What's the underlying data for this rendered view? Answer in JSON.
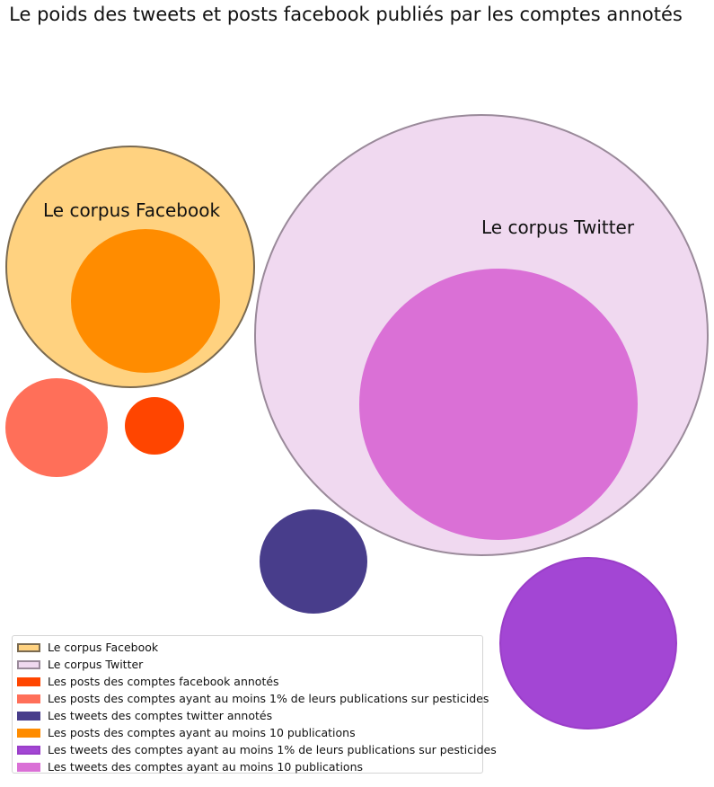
{
  "chart_data": {
    "type": "bubble",
    "title": "Le poids des tweets et posts facebook publiés par les comptes annotés",
    "circles": [
      {
        "id": "facebook-corpus",
        "name": "Le corpus Facebook",
        "label": "Le corpus Facebook",
        "color": "#ffd280",
        "edge": "#7a6a50",
        "relative_size": 100
      },
      {
        "id": "twitter-corpus",
        "name": "Le corpus Twitter",
        "label": "Le corpus Twitter",
        "color": "#f0d9f0",
        "edge": "#9a8a9a",
        "relative_size": 330
      },
      {
        "id": "fb-annotated",
        "name": "Les posts des comptes facebook annotés",
        "color": "#ff4500",
        "edge": null,
        "relative_size": 5.5
      },
      {
        "id": "fb-pesticides",
        "name": "Les posts des comptes ayant au moins 1% de leurs publications sur pesticides",
        "color": "#ff6f59",
        "edge": null,
        "relative_size": 16.5
      },
      {
        "id": "tw-annotated",
        "name": "Les tweets des comptes twitter annotés",
        "color": "#483d8b",
        "edge": null,
        "relative_size": 18.5
      },
      {
        "id": "fb-10pub",
        "name": "Les posts des comptes ayant au moins 10 publications",
        "color": "#ff8c00",
        "edge": null,
        "relative_size": 35.5
      },
      {
        "id": "tw-pesticides",
        "name": "Les tweets des comptes ayant au moins 1% de leurs publications sur pesticides",
        "color": "#a346d4",
        "edge": "#9a3ec8",
        "relative_size": 50
      },
      {
        "id": "tw-10pub",
        "name": "Les tweets des comptes ayant au moins 10 publications",
        "color": "#da70d6",
        "edge": null,
        "relative_size": 128
      }
    ],
    "legend": {
      "placement": "bottom-left",
      "entries": [
        {
          "label": "Le corpus Facebook",
          "color": "#ffd280",
          "edge": "#7a6a50"
        },
        {
          "label": "Le corpus Twitter",
          "color": "#f0d9f0",
          "edge": "#9a8a9a"
        },
        {
          "label": "Les posts des comptes facebook annotés",
          "color": "#ff4500",
          "edge": null
        },
        {
          "label": "Les posts des comptes ayant au moins 1% de leurs publications sur pesticides",
          "color": "#ff6f59",
          "edge": null
        },
        {
          "label": "Les tweets des comptes twitter annotés",
          "color": "#483d8b",
          "edge": null
        },
        {
          "label": "Les posts des comptes ayant au moins 10 publications",
          "color": "#ff8c00",
          "edge": null
        },
        {
          "label": "Les tweets des comptes ayant au moins 1% de leurs publications sur pesticides",
          "color": "#a346d4",
          "edge": "#9a3ec8"
        },
        {
          "label": "Les tweets des comptes ayant au moins 10 publications",
          "color": "#da70d6",
          "edge": null
        }
      ]
    },
    "axes_visible": false,
    "grid": false
  }
}
